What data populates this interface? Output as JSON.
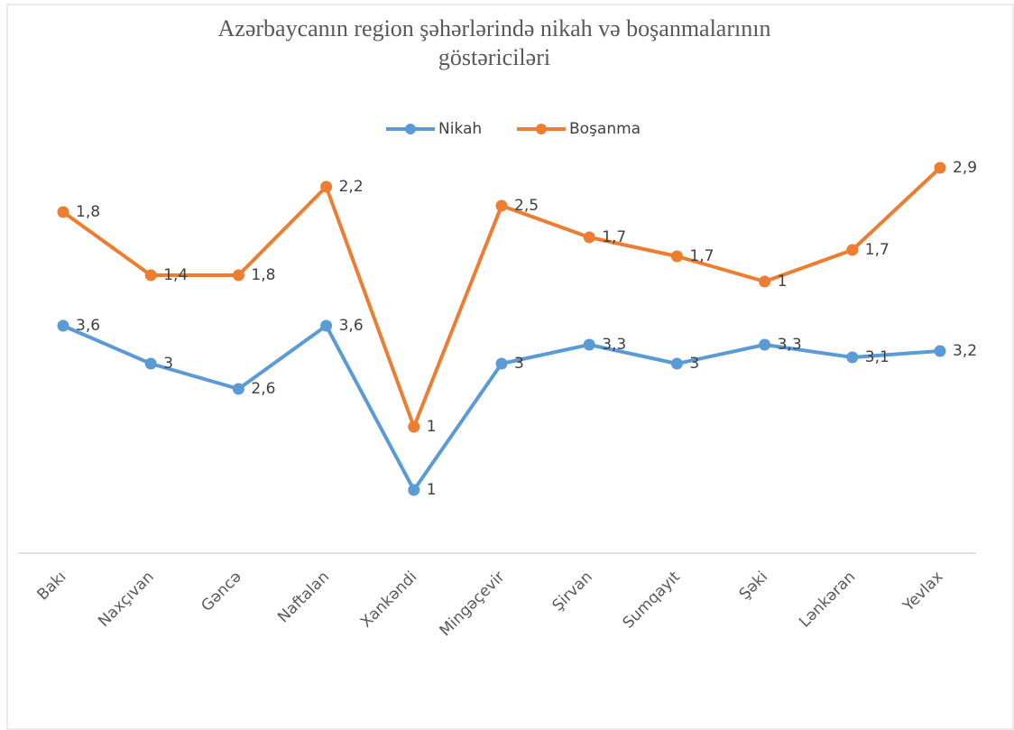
{
  "chart_data": {
    "type": "line",
    "stacked": true,
    "title": [
      "Azərbaycanın region şəhərlərində nikah və boşanmalarının",
      "göstəriciləri"
    ],
    "categories": [
      "Bakı",
      "Naxçıvan",
      "Gəncə",
      "Naftalan",
      "Xankəndi",
      "Mingəçevir",
      "Şirvan",
      "Sumqayıt",
      "Şəki",
      "Lənkəran",
      "Yevlax"
    ],
    "series": [
      {
        "name": "Nikah",
        "color": "#5b9bd5",
        "values": [
          3.6,
          3,
          2.6,
          3.6,
          1,
          3,
          3.3,
          3,
          3.3,
          3.1,
          3.2
        ],
        "value_labels": [
          "3,6",
          "3",
          "2,6",
          "3,6",
          "1",
          "3",
          "3,3",
          "3",
          "3,3",
          "3,1",
          "3,2"
        ]
      },
      {
        "name": "Boşanma",
        "color": "#ed7d31",
        "values": [
          1.8,
          1.4,
          1.8,
          2.2,
          1,
          2.5,
          1.7,
          1.7,
          1,
          1.7,
          2.9
        ],
        "value_labels": [
          "1,8",
          "1,4",
          "1,8",
          "2,2",
          "1",
          "2,5",
          "1,7",
          "1,7",
          "1",
          "1,7",
          "2,9"
        ]
      }
    ],
    "ylim": [
      0,
      7.2
    ],
    "legend": "top"
  }
}
